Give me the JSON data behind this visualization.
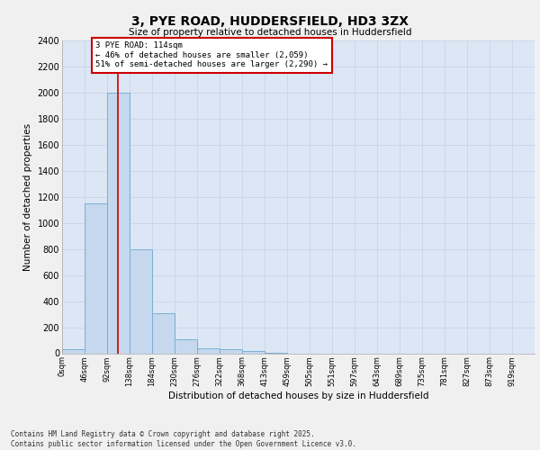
{
  "title_line1": "3, PYE ROAD, HUDDERSFIELD, HD3 3ZX",
  "title_line2": "Size of property relative to detached houses in Huddersfield",
  "xlabel": "Distribution of detached houses by size in Huddersfield",
  "ylabel": "Number of detached properties",
  "footnote_line1": "Contains HM Land Registry data © Crown copyright and database right 2025.",
  "footnote_line2": "Contains public sector information licensed under the Open Government Licence v3.0.",
  "bar_labels": [
    "0sqm",
    "46sqm",
    "92sqm",
    "138sqm",
    "184sqm",
    "230sqm",
    "276sqm",
    "322sqm",
    "368sqm",
    "413sqm",
    "459sqm",
    "505sqm",
    "551sqm",
    "597sqm",
    "643sqm",
    "689sqm",
    "735sqm",
    "781sqm",
    "827sqm",
    "873sqm",
    "919sqm"
  ],
  "bar_values": [
    30,
    1150,
    2000,
    800,
    310,
    110,
    40,
    30,
    20,
    5,
    0,
    0,
    0,
    0,
    0,
    0,
    0,
    0,
    0,
    0,
    0
  ],
  "bar_color": "#c5d8ed",
  "bar_edge_color": "#7aafd4",
  "ylim": [
    0,
    2400
  ],
  "yticks": [
    0,
    200,
    400,
    600,
    800,
    1000,
    1200,
    1400,
    1600,
    1800,
    2000,
    2200,
    2400
  ],
  "property_line_color": "#cc0000",
  "annotation_text": "3 PYE ROAD: 114sqm\n← 46% of detached houses are smaller (2,059)\n51% of semi-detached houses are larger (2,290) →",
  "annotation_box_color": "#ffffff",
  "annotation_box_edge": "#cc0000",
  "grid_color": "#c8d4e8",
  "bg_color": "#dce6f5",
  "fig_bg_color": "#f0f0f0",
  "bin_width": 46,
  "property_size_sqm": 114
}
